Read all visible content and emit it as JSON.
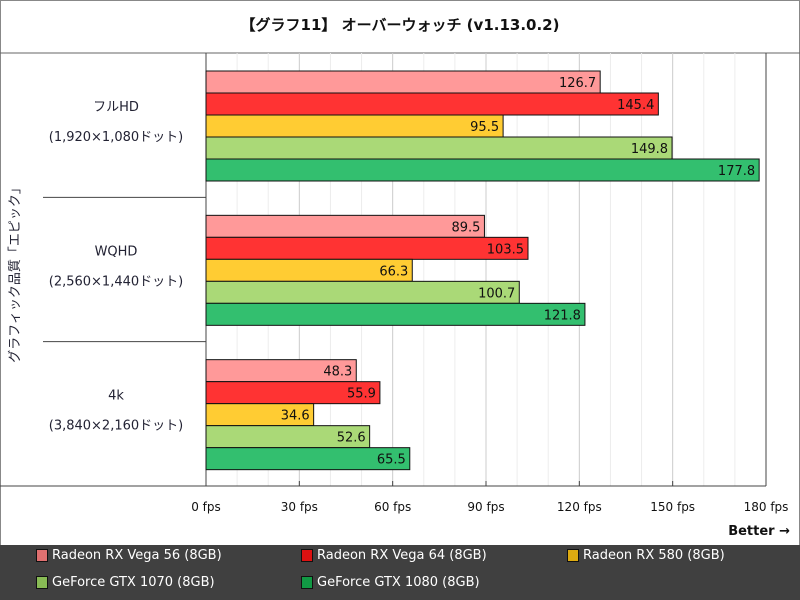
{
  "chart_data": {
    "type": "bar",
    "orientation": "horizontal",
    "title": "【グラフ11】 オーバーウォッチ (v1.13.0.2)",
    "ylabel": "グラフィック品質「エピック」",
    "xlabel": "Better →",
    "xlim": [
      0,
      180
    ],
    "xticks": [
      "0 fps",
      "30 fps",
      "60 fps",
      "90 fps",
      "120 fps",
      "150 fps",
      "180 fps"
    ],
    "xtick_values": [
      0,
      30,
      60,
      90,
      120,
      150,
      180
    ],
    "grid": true,
    "legend_position": "bottom",
    "categories": [
      {
        "name": "フルHD",
        "sub": "(1,920×1,080ドット)"
      },
      {
        "name": "WQHD",
        "sub": "(2,560×1,440ドット)"
      },
      {
        "name": "4k",
        "sub": "(3,840×2,160ドット)"
      }
    ],
    "series": [
      {
        "name": "Radeon RX Vega 56 (8GB)",
        "color": "#ff9999",
        "legend_color": "#e07070",
        "values": [
          126.7,
          89.5,
          48.3
        ]
      },
      {
        "name": "Radeon RX Vega 64 (8GB)",
        "color": "#ff3333",
        "legend_color": "#dd1111",
        "values": [
          145.4,
          103.5,
          55.9
        ]
      },
      {
        "name": "Radeon RX 580 (8GB)",
        "color": "#ffcc33",
        "legend_color": "#ddaa11",
        "values": [
          95.5,
          66.3,
          34.6
        ]
      },
      {
        "name": "GeForce GTX 1070 (8GB)",
        "color": "#aad977",
        "legend_color": "#88bb55",
        "values": [
          149.8,
          100.7,
          52.6
        ]
      },
      {
        "name": "GeForce GTX 1080 (8GB)",
        "color": "#33bf6f",
        "legend_color": "#119944",
        "values": [
          177.8,
          121.8,
          65.5
        ]
      }
    ]
  }
}
